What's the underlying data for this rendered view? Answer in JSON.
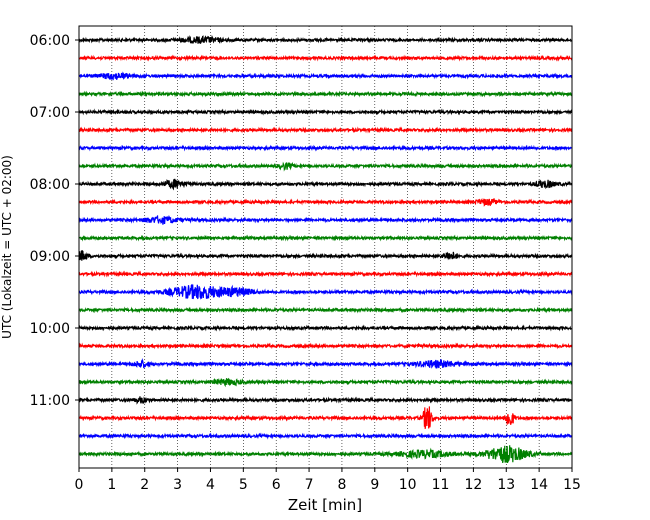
{
  "chart_data": {
    "type": "line",
    "title": "",
    "xlabel": "Zeit  [min]",
    "ylabel": "UTC (Lokalzeit = UTC + 02:00)",
    "xlim": [
      0,
      15
    ],
    "x_ticks": [
      "0",
      "1",
      "2",
      "3",
      "4",
      "5",
      "6",
      "7",
      "8",
      "9",
      "10",
      "11",
      "12",
      "13",
      "14",
      "15"
    ],
    "y_tick_labels": [
      "06:00",
      "07:00",
      "08:00",
      "09:00",
      "10:00",
      "11:00"
    ],
    "grid": {
      "vertical": true,
      "style": "dotted"
    },
    "trace_interval_minutes": 15,
    "start_time": "06:00",
    "trace_count": 24,
    "colors": [
      "#000000",
      "#ff0000",
      "#0000ff",
      "#008000"
    ],
    "events": [
      {
        "trace": 0,
        "x": 3.7,
        "amp": 0.8,
        "width": 0.6
      },
      {
        "trace": 2,
        "x": 1.1,
        "amp": 0.8,
        "width": 0.5
      },
      {
        "trace": 7,
        "x": 6.3,
        "amp": 0.8,
        "width": 0.2
      },
      {
        "trace": 8,
        "x": 2.9,
        "amp": 1.2,
        "width": 0.3
      },
      {
        "trace": 8,
        "x": 14.2,
        "amp": 1.0,
        "width": 0.3
      },
      {
        "trace": 9,
        "x": 12.4,
        "amp": 0.8,
        "width": 0.3
      },
      {
        "trace": 10,
        "x": 2.5,
        "amp": 0.9,
        "width": 0.5
      },
      {
        "trace": 12,
        "x": 0.1,
        "amp": 1.5,
        "width": 0.15
      },
      {
        "trace": 12,
        "x": 11.3,
        "amp": 1.2,
        "width": 0.2
      },
      {
        "trace": 14,
        "x": 3.6,
        "amp": 2.0,
        "width": 0.8
      },
      {
        "trace": 14,
        "x": 4.8,
        "amp": 1.0,
        "width": 0.5
      },
      {
        "trace": 18,
        "x": 1.9,
        "amp": 1.0,
        "width": 0.2
      },
      {
        "trace": 18,
        "x": 10.9,
        "amp": 1.0,
        "width": 0.6
      },
      {
        "trace": 19,
        "x": 4.5,
        "amp": 0.8,
        "width": 0.4
      },
      {
        "trace": 20,
        "x": 1.9,
        "amp": 0.8,
        "width": 0.2
      },
      {
        "trace": 21,
        "x": 10.6,
        "amp": 4.5,
        "width": 0.12
      },
      {
        "trace": 21,
        "x": 13.1,
        "amp": 3.0,
        "width": 0.12
      },
      {
        "trace": 23,
        "x": 13.0,
        "amp": 2.5,
        "width": 0.6
      },
      {
        "trace": 23,
        "x": 10.5,
        "amp": 1.0,
        "width": 0.8
      }
    ]
  }
}
